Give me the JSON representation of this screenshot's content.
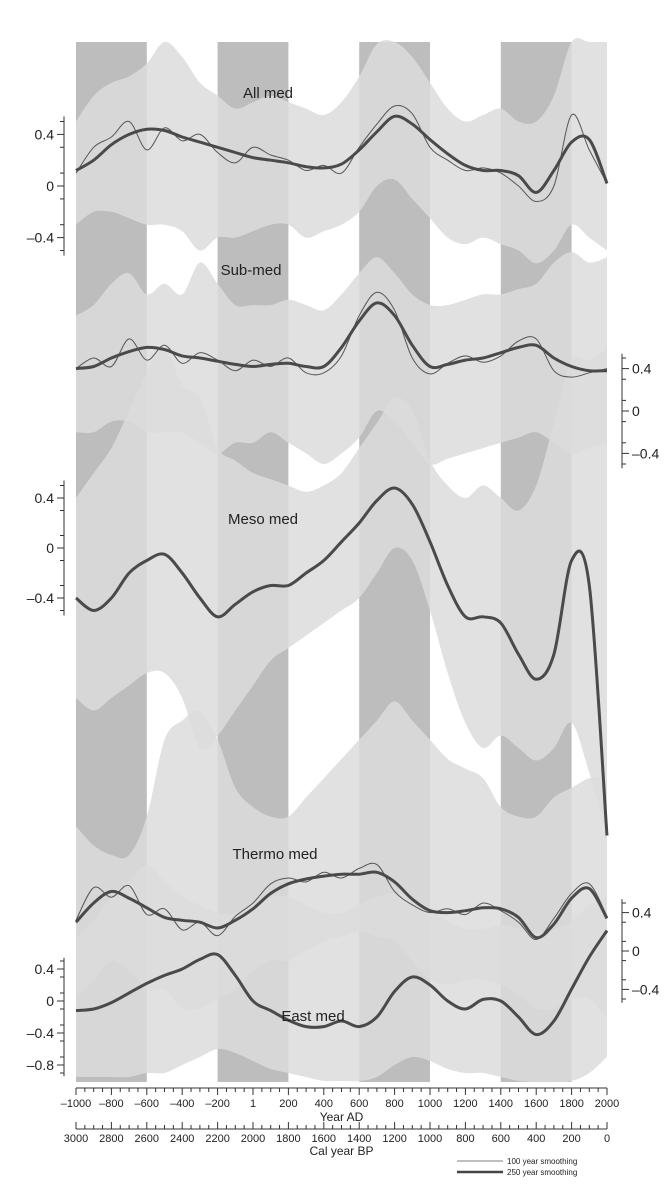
{
  "chart_data": {
    "type": "line",
    "x_axis": {
      "label": "Year AD",
      "range": [
        -1000,
        2000
      ],
      "ticks": [
        "-1000",
        "-800",
        "-600",
        "-400",
        "-200",
        "1",
        "200",
        "400",
        "600",
        "800",
        "1000",
        "1200",
        "1400",
        "1600",
        "1800",
        "2000"
      ]
    },
    "x_axis_secondary": {
      "label": "Cal year BP",
      "ticks": [
        "3000",
        "2800",
        "2600",
        "2400",
        "2200",
        "2000",
        "1800",
        "1600",
        "1400",
        "1200",
        "1000",
        "800",
        "600",
        "400",
        "200",
        "0"
      ]
    },
    "shaded_periods": [
      [
        -1000,
        -600
      ],
      [
        -200,
        200
      ],
      [
        600,
        1000
      ],
      [
        1400,
        1800
      ]
    ],
    "legend": [
      {
        "label": "100 year smoothing",
        "color": "#999999"
      },
      {
        "label": "250 year smoothing",
        "color": "#444444"
      }
    ],
    "panels": [
      {
        "name": "All med",
        "axis_side": "left",
        "ylim": [
          -0.6,
          0.6
        ],
        "y_ticks": [
          "0.4",
          "0",
          "–0.4"
        ],
        "x": [
          -1000,
          -900,
          -800,
          -700,
          -600,
          -500,
          -400,
          -300,
          -200,
          -100,
          0,
          100,
          200,
          300,
          400,
          500,
          600,
          700,
          800,
          900,
          1000,
          1100,
          1200,
          1300,
          1400,
          1500,
          1600,
          1700,
          1800,
          1900,
          2000
        ],
        "series_250": [
          0.12,
          0.2,
          0.32,
          0.4,
          0.44,
          0.43,
          0.38,
          0.34,
          0.3,
          0.26,
          0.22,
          0.2,
          0.18,
          0.15,
          0.14,
          0.17,
          0.28,
          0.42,
          0.54,
          0.48,
          0.36,
          0.25,
          0.16,
          0.12,
          0.12,
          0.08,
          -0.05,
          0.12,
          0.34,
          0.36,
          0.02
        ],
        "series_100": [
          0.1,
          0.3,
          0.38,
          0.5,
          0.28,
          0.45,
          0.35,
          0.4,
          0.26,
          0.18,
          0.3,
          0.24,
          0.2,
          0.12,
          0.16,
          0.1,
          0.3,
          0.48,
          0.62,
          0.56,
          0.3,
          0.2,
          0.12,
          0.14,
          0.1,
          0.0,
          -0.12,
          0.0,
          0.55,
          0.28,
          0.02
        ],
        "envelope_upper": [
          0.5,
          0.7,
          0.8,
          0.85,
          0.95,
          1.2,
          1.0,
          0.8,
          0.7,
          0.6,
          0.65,
          0.7,
          0.65,
          0.6,
          0.55,
          0.65,
          0.85,
          1.1,
          1.2,
          1.0,
          0.8,
          0.6,
          0.5,
          0.55,
          0.6,
          0.5,
          0.5,
          0.7,
          1.3,
          1.4,
          1.5
        ],
        "envelope_lower": [
          -0.3,
          -0.2,
          -0.2,
          -0.25,
          -0.3,
          -0.3,
          -0.35,
          -0.5,
          -0.4,
          -0.4,
          -0.35,
          -0.3,
          -0.3,
          -0.4,
          -0.35,
          -0.3,
          -0.2,
          0.0,
          0.05,
          -0.1,
          -0.25,
          -0.4,
          -0.45,
          -0.4,
          -0.45,
          -0.5,
          -0.6,
          -0.5,
          -0.3,
          -0.4,
          -0.5
        ]
      },
      {
        "name": "Sub-med",
        "axis_side": "right",
        "ylim": [
          -0.6,
          0.6
        ],
        "y_ticks": [
          "0.4",
          "0",
          "–0.4"
        ],
        "x": [
          -1000,
          -900,
          -800,
          -700,
          -600,
          -500,
          -400,
          -300,
          -200,
          -100,
          0,
          100,
          200,
          300,
          400,
          500,
          600,
          700,
          800,
          900,
          1000,
          1100,
          1200,
          1300,
          1400,
          1500,
          1600,
          1700,
          1800,
          1900,
          2000
        ],
        "series_250": [
          0.4,
          0.42,
          0.5,
          0.56,
          0.6,
          0.58,
          0.52,
          0.5,
          0.47,
          0.44,
          0.42,
          0.44,
          0.45,
          0.42,
          0.42,
          0.6,
          0.85,
          1.02,
          0.9,
          0.62,
          0.42,
          0.44,
          0.48,
          0.5,
          0.55,
          0.6,
          0.62,
          0.5,
          0.42,
          0.38,
          0.38
        ],
        "series_100": [
          0.4,
          0.5,
          0.42,
          0.68,
          0.48,
          0.62,
          0.45,
          0.55,
          0.48,
          0.38,
          0.48,
          0.42,
          0.5,
          0.36,
          0.36,
          0.52,
          0.9,
          1.12,
          0.95,
          0.5,
          0.35,
          0.45,
          0.52,
          0.46,
          0.52,
          0.66,
          0.68,
          0.38,
          0.32,
          0.36,
          0.4
        ],
        "envelope_upper": [
          0.9,
          1.0,
          1.2,
          1.3,
          1.1,
          1.2,
          1.1,
          1.4,
          1.2,
          1.0,
          1.0,
          1.0,
          1.05,
          1.0,
          0.95,
          1.1,
          1.3,
          1.45,
          1.3,
          1.1,
          1.0,
          1.0,
          1.05,
          1.1,
          1.1,
          1.15,
          1.2,
          1.4,
          1.5,
          1.4,
          1.45
        ],
        "envelope_lower": [
          -0.2,
          -0.2,
          -0.1,
          -0.1,
          -0.2,
          -0.2,
          -0.2,
          -0.3,
          -0.4,
          -0.3,
          -0.3,
          -0.2,
          -0.3,
          -0.4,
          -0.5,
          -0.4,
          -0.25,
          0.0,
          -0.1,
          -0.3,
          -0.5,
          -0.45,
          -0.4,
          -0.35,
          -0.3,
          -0.25,
          -0.2,
          -0.3,
          -0.4,
          -0.35,
          -0.3
        ]
      },
      {
        "name": "Meso med",
        "axis_side": "left",
        "ylim": [
          -0.6,
          0.6
        ],
        "y_ticks": [
          "0.4",
          "0",
          "–0.4"
        ],
        "x": [
          -1000,
          -900,
          -800,
          -700,
          -600,
          -500,
          -400,
          -300,
          -200,
          -100,
          0,
          100,
          200,
          300,
          400,
          500,
          600,
          700,
          800,
          900,
          1000,
          1100,
          1200,
          1300,
          1400,
          1500,
          1600,
          1700,
          1800,
          1900,
          2000
        ],
        "series_250": [
          -0.4,
          -0.5,
          -0.4,
          -0.2,
          -0.1,
          -0.05,
          -0.2,
          -0.4,
          -0.55,
          -0.45,
          -0.35,
          -0.3,
          -0.3,
          -0.2,
          -0.1,
          0.05,
          0.2,
          0.38,
          0.48,
          0.35,
          0.05,
          -0.3,
          -0.55,
          -0.55,
          -0.6,
          -0.85,
          -1.05,
          -0.85,
          -0.1,
          -0.3,
          -2.3
        ],
        "envelope_upper": [
          0.4,
          0.6,
          0.8,
          1.1,
          1.4,
          1.6,
          1.3,
          1.2,
          0.8,
          0.7,
          0.6,
          0.55,
          0.5,
          0.45,
          0.5,
          0.6,
          0.8,
          1.0,
          1.2,
          1.1,
          0.7,
          0.5,
          0.4,
          0.5,
          0.4,
          0.3,
          0.5,
          1.0,
          1.5,
          1.5,
          1.6
        ],
        "envelope_lower": [
          -1.2,
          -1.3,
          -1.2,
          -1.1,
          -1.0,
          -1.0,
          -1.2,
          -1.6,
          -1.5,
          -1.3,
          -1.1,
          -0.9,
          -0.8,
          -0.7,
          -0.6,
          -0.5,
          -0.4,
          -0.2,
          0.0,
          -0.1,
          -0.5,
          -1.0,
          -1.4,
          -1.6,
          -1.5,
          -1.6,
          -1.7,
          -1.6,
          -1.4,
          -1.8,
          -2.3
        ]
      },
      {
        "name": "Thermo med",
        "axis_side": "right",
        "ylim": [
          -0.6,
          0.6
        ],
        "y_ticks": [
          "0.4",
          "0",
          "–0.4"
        ],
        "x": [
          -1000,
          -900,
          -800,
          -700,
          -600,
          -500,
          -400,
          -300,
          -200,
          -100,
          0,
          100,
          200,
          300,
          400,
          500,
          600,
          700,
          800,
          900,
          1000,
          1100,
          1200,
          1300,
          1400,
          1500,
          1600,
          1700,
          1800,
          1900,
          2000
        ],
        "series_250": [
          0.3,
          0.5,
          0.62,
          0.55,
          0.45,
          0.35,
          0.32,
          0.3,
          0.24,
          0.32,
          0.44,
          0.6,
          0.7,
          0.75,
          0.78,
          0.8,
          0.8,
          0.82,
          0.72,
          0.54,
          0.42,
          0.4,
          0.42,
          0.45,
          0.44,
          0.35,
          0.14,
          0.28,
          0.55,
          0.65,
          0.34
        ],
        "series_100": [
          0.32,
          0.66,
          0.56,
          0.68,
          0.38,
          0.44,
          0.22,
          0.3,
          0.16,
          0.36,
          0.5,
          0.7,
          0.76,
          0.72,
          0.82,
          0.76,
          0.86,
          0.9,
          0.62,
          0.48,
          0.4,
          0.44,
          0.38,
          0.5,
          0.42,
          0.3,
          0.12,
          0.34,
          0.6,
          0.7,
          0.36
        ],
        "envelope_upper": [
          1.3,
          1.1,
          1.0,
          1.0,
          1.4,
          2.2,
          2.4,
          2.5,
          2.2,
          1.7,
          1.5,
          1.4,
          1.4,
          1.6,
          1.8,
          2.0,
          2.2,
          2.4,
          2.6,
          2.4,
          2.2,
          2.0,
          1.9,
          1.8,
          1.5,
          1.4,
          1.4,
          1.6,
          1.7,
          1.8,
          1.8
        ],
        "envelope_lower": [
          -0.5,
          -0.3,
          -0.1,
          -0.2,
          -0.4,
          -0.4,
          -0.6,
          -0.6,
          -0.5,
          -0.4,
          -0.2,
          -0.1,
          -0.1,
          0.0,
          0.1,
          0.15,
          0.2,
          0.15,
          0.1,
          -0.1,
          -0.3,
          -0.35,
          -0.3,
          -0.3,
          -0.35,
          -0.45,
          -0.6,
          -0.6,
          -0.5,
          -0.5,
          -0.7
        ]
      },
      {
        "name": "East med",
        "axis_side": "left",
        "ylim": [
          -0.8,
          0.6
        ],
        "y_ticks": [
          "0.4",
          "0",
          "–0.4",
          "–0.8"
        ],
        "x": [
          -1000,
          -900,
          -800,
          -700,
          -600,
          -500,
          -400,
          -300,
          -200,
          -100,
          0,
          100,
          200,
          300,
          400,
          500,
          600,
          700,
          800,
          900,
          1000,
          1100,
          1200,
          1300,
          1400,
          1500,
          1600,
          1700,
          1800,
          1900,
          2000
        ],
        "series_250": [
          -0.12,
          -0.1,
          -0.02,
          0.1,
          0.22,
          0.32,
          0.4,
          0.52,
          0.58,
          0.32,
          0.0,
          -0.12,
          -0.24,
          -0.32,
          -0.32,
          -0.25,
          -0.32,
          -0.2,
          0.12,
          0.3,
          0.2,
          0.0,
          -0.1,
          0.02,
          0.0,
          -0.2,
          -0.42,
          -0.25,
          0.15,
          0.55,
          0.88
        ],
        "envelope_upper": [
          0.8,
          1.0,
          1.3,
          1.5,
          1.7,
          1.5,
          1.3,
          1.2,
          1.1,
          1.1,
          1.2,
          1.3,
          1.3,
          1.2,
          1.1,
          1.1,
          1.2,
          1.3,
          1.35,
          1.3,
          1.15,
          1.0,
          0.9,
          0.9,
          0.95,
          0.9,
          0.85,
          0.9,
          1.0,
          1.2,
          1.3
        ],
        "envelope_lower": [
          -0.95,
          -0.95,
          -0.95,
          -0.95,
          -0.9,
          -0.9,
          -0.8,
          -0.7,
          -0.6,
          -0.65,
          -0.75,
          -0.85,
          -0.9,
          -0.95,
          -1.0,
          -1.0,
          -1.0,
          -0.95,
          -0.8,
          -0.7,
          -0.75,
          -0.85,
          -0.9,
          -0.9,
          -0.95,
          -1.0,
          -1.05,
          -1.05,
          -1.0,
          -0.9,
          -0.7
        ]
      }
    ]
  }
}
